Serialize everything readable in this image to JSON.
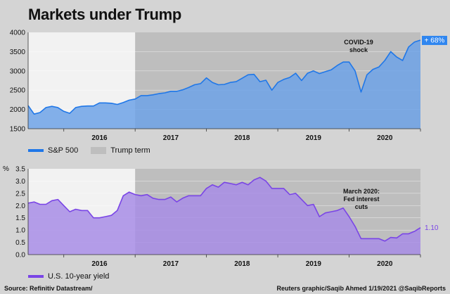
{
  "title": "Markets under Trump",
  "footer": {
    "source": "Source: Refinitiv Datastream/",
    "credit": "Reuters graphic/Saqib Ahmed 1/19/2021 @SaqibReports"
  },
  "colors": {
    "background": "#d4d4d4",
    "plot_background": "#f2f2f2",
    "trump_term": "#bebebe",
    "sp500_line": "#1f77e8",
    "sp500_fill": "#6fa3e8",
    "yield_line": "#7a45e6",
    "yield_fill": "#a88de6",
    "badge_blue": "#2f86f0"
  },
  "chart_data": [
    {
      "type": "area",
      "series": [
        {
          "name": "S&P 500",
          "x": [
            "2015-07",
            "2015-08",
            "2015-09",
            "2015-10",
            "2015-11",
            "2015-12",
            "2016-01",
            "2016-02",
            "2016-03",
            "2016-04",
            "2016-05",
            "2016-06",
            "2016-07",
            "2016-08",
            "2016-09",
            "2016-10",
            "2016-11",
            "2016-12",
            "2017-01",
            "2017-02",
            "2017-03",
            "2017-04",
            "2017-05",
            "2017-06",
            "2017-07",
            "2017-08",
            "2017-09",
            "2017-10",
            "2017-11",
            "2017-12",
            "2018-01",
            "2018-02",
            "2018-03",
            "2018-04",
            "2018-05",
            "2018-06",
            "2018-07",
            "2018-08",
            "2018-09",
            "2018-10",
            "2018-11",
            "2018-12",
            "2019-01",
            "2019-02",
            "2019-03",
            "2019-04",
            "2019-05",
            "2019-06",
            "2019-07",
            "2019-08",
            "2019-09",
            "2019-10",
            "2019-11",
            "2019-12",
            "2020-01",
            "2020-02",
            "2020-03",
            "2020-04",
            "2020-05",
            "2020-06",
            "2020-07",
            "2020-08",
            "2020-09",
            "2020-10",
            "2020-11",
            "2020-12",
            "2021-01"
          ],
          "values": [
            2100,
            1880,
            1920,
            2050,
            2080,
            2050,
            1950,
            1900,
            2050,
            2080,
            2090,
            2090,
            2170,
            2170,
            2160,
            2130,
            2180,
            2240,
            2270,
            2360,
            2360,
            2380,
            2410,
            2430,
            2470,
            2470,
            2510,
            2570,
            2640,
            2670,
            2820,
            2700,
            2640,
            2650,
            2700,
            2720,
            2810,
            2900,
            2910,
            2720,
            2760,
            2500,
            2700,
            2780,
            2830,
            2940,
            2750,
            2940,
            3000,
            2930,
            2980,
            3030,
            3140,
            3230,
            3230,
            3000,
            2450,
            2900,
            3040,
            3100,
            3270,
            3500,
            3360,
            3270,
            3620,
            3750,
            3800
          ]
        }
      ],
      "ylim": [
        1500,
        4000
      ],
      "yticks": [
        "1500",
        "2000",
        "2500",
        "3000",
        "3500",
        "4000"
      ],
      "xticks": [
        "2016",
        "2017",
        "2018",
        "2019",
        "2020"
      ],
      "trump_term": [
        "2017-01",
        "2021-01"
      ],
      "legend": [
        "S&P 500",
        "Trump term"
      ],
      "annotations": [
        {
          "text": "COVID-19",
          "line": 1
        },
        {
          "text": "shock",
          "line": 2
        }
      ],
      "end_label": "+ 68%"
    },
    {
      "type": "area",
      "series": [
        {
          "name": "U.S. 10-year yield",
          "x": [
            "2015-07",
            "2015-08",
            "2015-09",
            "2015-10",
            "2015-11",
            "2015-12",
            "2016-01",
            "2016-02",
            "2016-03",
            "2016-04",
            "2016-05",
            "2016-06",
            "2016-07",
            "2016-08",
            "2016-09",
            "2016-10",
            "2016-11",
            "2016-12",
            "2017-01",
            "2017-02",
            "2017-03",
            "2017-04",
            "2017-05",
            "2017-06",
            "2017-07",
            "2017-08",
            "2017-09",
            "2017-10",
            "2017-11",
            "2017-12",
            "2018-01",
            "2018-02",
            "2018-03",
            "2018-04",
            "2018-05",
            "2018-06",
            "2018-07",
            "2018-08",
            "2018-09",
            "2018-10",
            "2018-11",
            "2018-12",
            "2019-01",
            "2019-02",
            "2019-03",
            "2019-04",
            "2019-05",
            "2019-06",
            "2019-07",
            "2019-08",
            "2019-09",
            "2019-10",
            "2019-11",
            "2019-12",
            "2020-01",
            "2020-02",
            "2020-03",
            "2020-04",
            "2020-05",
            "2020-06",
            "2020-07",
            "2020-08",
            "2020-09",
            "2020-10",
            "2020-11",
            "2020-12",
            "2021-01"
          ],
          "values": [
            2.1,
            2.15,
            2.05,
            2.05,
            2.2,
            2.25,
            2.0,
            1.75,
            1.85,
            1.8,
            1.8,
            1.5,
            1.5,
            1.55,
            1.6,
            1.8,
            2.4,
            2.55,
            2.45,
            2.4,
            2.45,
            2.3,
            2.25,
            2.25,
            2.35,
            2.15,
            2.3,
            2.4,
            2.4,
            2.4,
            2.7,
            2.85,
            2.75,
            2.95,
            2.9,
            2.85,
            2.95,
            2.85,
            3.05,
            3.15,
            3.0,
            2.7,
            2.7,
            2.7,
            2.45,
            2.5,
            2.25,
            2.0,
            2.05,
            1.55,
            1.7,
            1.75,
            1.8,
            1.9,
            1.55,
            1.15,
            0.65,
            0.65,
            0.65,
            0.65,
            0.55,
            0.7,
            0.68,
            0.85,
            0.85,
            0.95,
            1.1
          ]
        }
      ],
      "ylim": [
        0,
        3.5
      ],
      "yticks": [
        "0.0",
        "0.5",
        "1.0",
        "1.5",
        "2.0",
        "2.5",
        "3.0",
        "3.5"
      ],
      "ylabel": "%",
      "xticks": [
        "2016",
        "2017",
        "2018",
        "2019",
        "2020"
      ],
      "trump_term": [
        "2017-01",
        "2021-01"
      ],
      "legend": [
        "U.S. 10-year yield"
      ],
      "annotations": [
        {
          "text": "March 2020:",
          "line": 1
        },
        {
          "text": "Fed interest",
          "line": 2
        },
        {
          "text": "cuts",
          "line": 3
        }
      ],
      "end_label": "1.10"
    }
  ]
}
